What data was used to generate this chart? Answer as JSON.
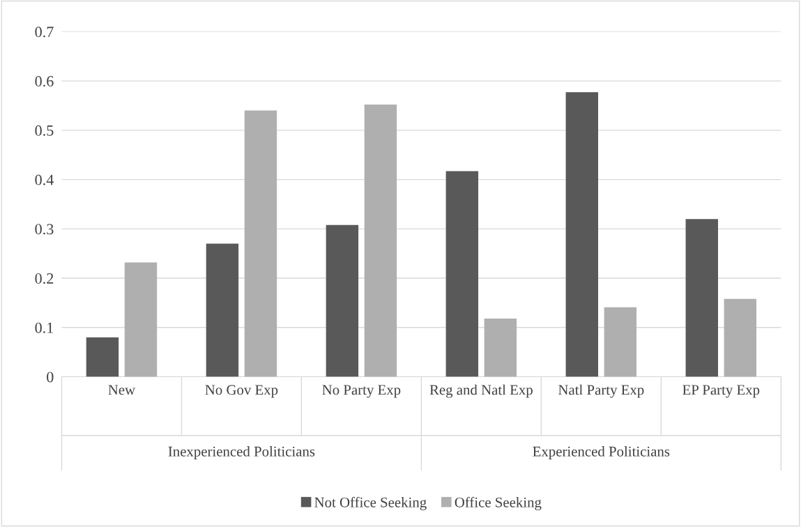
{
  "chart_data": {
    "type": "bar",
    "categories": [
      "New",
      "No Gov Exp",
      "No Party Exp",
      "Reg and Natl Exp",
      "Natl Party Exp",
      "EP Party Exp"
    ],
    "series": [
      {
        "name": "Not Office Seeking",
        "color": "#595959",
        "values": [
          0.08,
          0.27,
          0.308,
          0.417,
          0.577,
          0.32
        ]
      },
      {
        "name": "Office Seeking",
        "color": "#afafaf",
        "values": [
          0.232,
          0.54,
          0.552,
          0.118,
          0.141,
          0.158
        ]
      }
    ],
    "annotations": [
      "Inexperienced Politicians",
      "Experienced Politicians"
    ],
    "ylim": [
      0,
      0.7
    ],
    "yticks": [
      0,
      0.1,
      0.2,
      0.3,
      0.4,
      0.5,
      0.6,
      0.7
    ],
    "grid": "y",
    "legend": "bottom"
  }
}
